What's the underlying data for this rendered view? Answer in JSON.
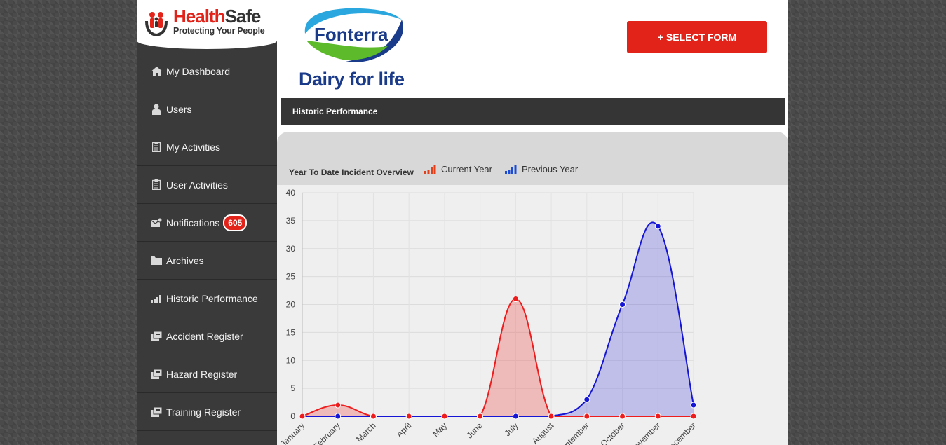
{
  "brand": {
    "title_h": "Health",
    "title_s": "Safe",
    "tagline": "Protecting Your People"
  },
  "client": {
    "name": "Fonterra",
    "tagline": "Dairy for life"
  },
  "header": {
    "select_form_label": "+ SELECT FORM"
  },
  "nav": {
    "items": [
      {
        "label": "My Dashboard",
        "icon": "home-icon"
      },
      {
        "label": "Users",
        "icon": "user-icon"
      },
      {
        "label": "My Activities",
        "icon": "clipboard-icon"
      },
      {
        "label": "User Activities",
        "icon": "clipboard-icon"
      },
      {
        "label": "Notifications",
        "icon": "mail-icon",
        "badge": "605"
      },
      {
        "label": "Archives",
        "icon": "folder-icon"
      },
      {
        "label": "Historic Performance",
        "icon": "bar-chart-icon"
      },
      {
        "label": "Accident Register",
        "icon": "register-icon"
      },
      {
        "label": "Hazard Register",
        "icon": "register-icon"
      },
      {
        "label": "Training Register",
        "icon": "register-icon"
      }
    ]
  },
  "section": {
    "title": "Historic Performance"
  },
  "colors": {
    "accent": "#e2231a",
    "sidebar": "#3a3a3a",
    "current": "#ee1c1c",
    "previous": "#1515d6"
  },
  "chart_data": {
    "type": "area",
    "title": "Year To Date Incident Overview",
    "categories": [
      "January",
      "February",
      "March",
      "April",
      "May",
      "June",
      "July",
      "August",
      "September",
      "October",
      "November",
      "December"
    ],
    "category_labels_visible": [
      "January",
      "February",
      "March",
      "April",
      "May",
      "June",
      "July",
      "August",
      "September",
      "October",
      "November",
      "December"
    ],
    "series": [
      {
        "name": "Current Year",
        "color": "#ee1c1c",
        "values": [
          0,
          2,
          0,
          0,
          0,
          0,
          21,
          0,
          0,
          0,
          0,
          0
        ]
      },
      {
        "name": "Previous Year",
        "color": "#1515d6",
        "values": [
          0,
          0,
          0,
          0,
          0,
          0,
          0,
          0,
          3,
          20,
          34,
          2
        ]
      }
    ],
    "ylim": [
      0,
      40
    ],
    "yticks": [
      0,
      5,
      10,
      15,
      20,
      25,
      30,
      35,
      40
    ],
    "grid": true,
    "legend": "top"
  }
}
